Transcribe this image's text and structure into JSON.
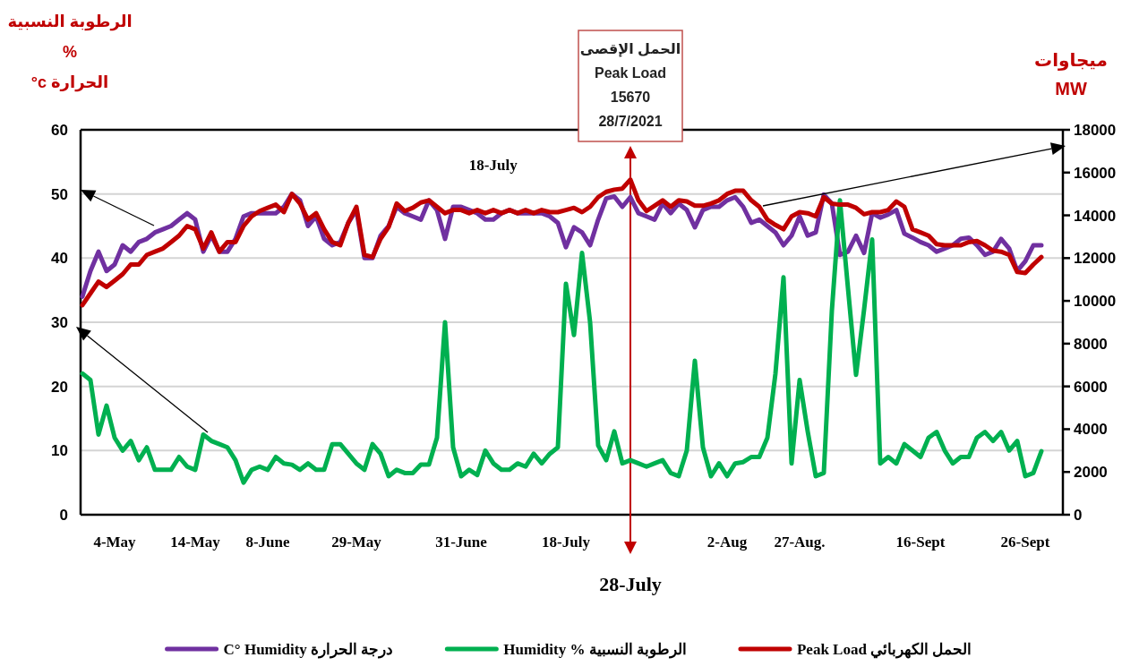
{
  "chart_data": {
    "type": "line",
    "categories": [
      null,
      null,
      null,
      null,
      "4-May",
      null,
      null,
      null,
      null,
      null,
      null,
      null,
      null,
      null,
      "14-May",
      null,
      null,
      null,
      null,
      null,
      null,
      null,
      null,
      "8-June",
      null,
      null,
      null,
      null,
      null,
      null,
      null,
      null,
      null,
      null,
      "29-May",
      null,
      null,
      null,
      null,
      null,
      null,
      null,
      null,
      null,
      null,
      null,
      null,
      "31-June",
      null,
      null,
      null,
      null,
      null,
      null,
      null,
      null,
      null,
      null,
      null,
      null,
      "18-July",
      null,
      null,
      null,
      null,
      null,
      null,
      null,
      null,
      null,
      null,
      null,
      null,
      null,
      null,
      null,
      null,
      null,
      null,
      null,
      "2-Aug",
      null,
      null,
      null,
      null,
      null,
      null,
      null,
      null,
      "27-Aug.",
      null,
      null,
      null,
      null,
      null,
      null,
      null,
      null,
      null,
      null,
      null,
      null,
      null,
      null,
      "16-Sept",
      null,
      null,
      null,
      null,
      null,
      null,
      null,
      null,
      null,
      null,
      null,
      null,
      "26-Sept",
      null,
      null
    ],
    "series": [
      {
        "name": "C° Humidity درجة الحرارة",
        "color": "#7030a0",
        "values": [
          34,
          38,
          41,
          38,
          39,
          42,
          41,
          42.5,
          43,
          44,
          44.5,
          45,
          46,
          47,
          46,
          41,
          43.5,
          41,
          41,
          43,
          46.5,
          47,
          47,
          47,
          47,
          48,
          50,
          49,
          45,
          46.5,
          43,
          42,
          42.5,
          45.5,
          47.5,
          40,
          40,
          43.5,
          45,
          48,
          47,
          46.5,
          46,
          49,
          47.5,
          43,
          48,
          48,
          47.5,
          47,
          46,
          46,
          47,
          47.5,
          47,
          47,
          47,
          47,
          46.5,
          45.5,
          41.7,
          44.8,
          44,
          42,
          46,
          49.3,
          49.6,
          48,
          49.5,
          47,
          46.5,
          46,
          48.5,
          47,
          48.5,
          47.5,
          44.8,
          47.5,
          48,
          48,
          49,
          49.5,
          48,
          45.5,
          46,
          45,
          44,
          42,
          43.5,
          46.5,
          43.5,
          44,
          49.9,
          48.5,
          40.5,
          41,
          43.5,
          40.8,
          47,
          46.3,
          46.8,
          47.5,
          43.8,
          43.2,
          42.5,
          42,
          41,
          41.5,
          42,
          43,
          43.2,
          42,
          40.5,
          41,
          43,
          41.5,
          38,
          39.5,
          42,
          42
        ]
      },
      {
        "name": "Humidity % الرطوبة النسبية",
        "color": "#00b050",
        "values": [
          22,
          21,
          12.5,
          17,
          12,
          10,
          11.5,
          8.5,
          10.5,
          7,
          7,
          7,
          9,
          7.5,
          7,
          12.5,
          11.5,
          11,
          10.5,
          8.5,
          5,
          7,
          7.5,
          7,
          9,
          8,
          7.8,
          7,
          8,
          7,
          7,
          11,
          11,
          9.5,
          8,
          7,
          11,
          9.5,
          6,
          7,
          6.5,
          6.5,
          7.8,
          7.8,
          12,
          30,
          10.5,
          6,
          7,
          6.2,
          10,
          8,
          7,
          7,
          8,
          7.5,
          9.5,
          8,
          9.5,
          10.5,
          36,
          28,
          40.8,
          30,
          10.8,
          8.5,
          13,
          8,
          8.5,
          8,
          7.5,
          8,
          8.5,
          6.5,
          6,
          10,
          24,
          10.5,
          6,
          8,
          6,
          8,
          8.2,
          9,
          9,
          12,
          22,
          37,
          8,
          21,
          13,
          6,
          6.5,
          31.8,
          49,
          35.3,
          21.8,
          32,
          42.9,
          8,
          9,
          8,
          11,
          10,
          9,
          12,
          12.9,
          10,
          8,
          9,
          9,
          12,
          12.9,
          11.5,
          12.9,
          10,
          11.5,
          6,
          6.5,
          9.9
        ]
      },
      {
        "name": "Peak Load الحمل الكهربائي",
        "color": "#c00000",
        "axis": "y2",
        "values": [
          9800,
          10350,
          10900,
          10650,
          10950,
          11250,
          11700,
          11700,
          12150,
          12300,
          12450,
          12750,
          13050,
          13500,
          13350,
          12450,
          13200,
          12300,
          12750,
          12750,
          13500,
          13950,
          14200,
          14350,
          14500,
          14150,
          15000,
          14550,
          13800,
          14100,
          13350,
          12750,
          12600,
          13650,
          14400,
          12150,
          12050,
          12900,
          13450,
          14550,
          14200,
          14350,
          14600,
          14700,
          14400,
          14100,
          14250,
          14250,
          14100,
          14250,
          14100,
          14250,
          14100,
          14250,
          14100,
          14250,
          14100,
          14250,
          14150,
          14150,
          14250,
          14350,
          14150,
          14400,
          14850,
          15100,
          15200,
          15250,
          15670,
          14700,
          14200,
          14450,
          14700,
          14400,
          14700,
          14650,
          14450,
          14450,
          14550,
          14700,
          15000,
          15150,
          15150,
          14700,
          14400,
          13800,
          13550,
          13350,
          13950,
          14150,
          14100,
          13950,
          14850,
          14550,
          14500,
          14500,
          14350,
          14050,
          14150,
          14150,
          14250,
          14650,
          14400,
          13350,
          13200,
          13050,
          12650,
          12600,
          12600,
          12600,
          12750,
          12800,
          12600,
          12350,
          12300,
          12150,
          11350,
          11300,
          11700,
          12050
        ]
      }
    ],
    "ylim": [
      0,
      60
    ],
    "yticks": [
      0,
      10,
      20,
      30,
      40,
      50,
      60
    ],
    "y2lim": [
      0,
      18000
    ],
    "y2ticks": [
      0,
      2000,
      4000,
      6000,
      8000,
      10000,
      12000,
      14000,
      16000,
      18000
    ],
    "ylabel": "الرطوبة النسبية\n%\nالحرارة c°",
    "y2label": "ميجاوات\nMW",
    "grid": "y",
    "legend": "bottom",
    "annotations": [
      "الحمل الإقصى\nPeak Load\n15670\n28/7/2021",
      "18-July",
      "28-July"
    ]
  }
}
